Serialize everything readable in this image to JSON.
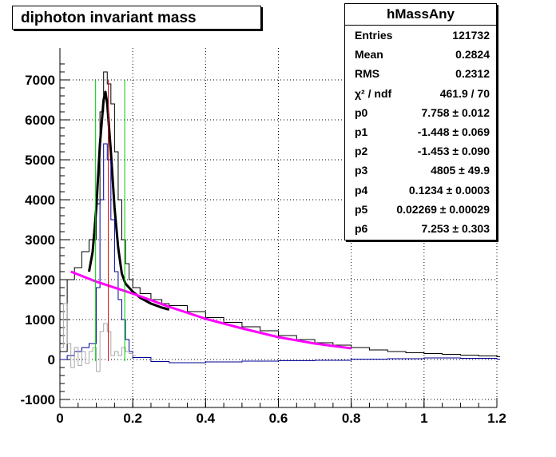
{
  "title": "diphoton invariant mass",
  "stats": {
    "name": "hMassAny",
    "rows": [
      {
        "label": "Entries",
        "value": "121732"
      },
      {
        "label": "Mean",
        "value": "0.2824"
      },
      {
        "label": "RMS",
        "value": "0.2312"
      },
      {
        "label": "χ² / ndf",
        "value": "461.9 / 70"
      },
      {
        "label": "p0",
        "value": "7.758 ± 0.012"
      },
      {
        "label": "p1",
        "value": "-1.448 ± 0.069"
      },
      {
        "label": "p2",
        "value": "-1.453 ± 0.090"
      },
      {
        "label": "p3",
        "value": "4805 ± 49.9"
      },
      {
        "label": "p4",
        "value": "0.1234 ± 0.0003"
      },
      {
        "label": "p5",
        "value": "0.02269 ± 0.00029"
      },
      {
        "label": "p6",
        "value": "7.253 ± 0.303"
      }
    ]
  },
  "chart_data": {
    "type": "line",
    "title": "diphoton invariant mass",
    "xlabel": "",
    "ylabel": "",
    "xlim": [
      0,
      1.2
    ],
    "ylim": [
      -1200,
      7800
    ],
    "grid": true,
    "x_ticks": [
      "0",
      "0.2",
      "0.4",
      "0.6",
      "0.8",
      "1",
      "1.2"
    ],
    "y_ticks": [
      "-1000",
      "0",
      "1000",
      "2000",
      "3000",
      "4000",
      "5000",
      "6000",
      "7000"
    ],
    "x_tick_values": [
      0,
      0.2,
      0.4,
      0.6,
      0.8,
      1.0,
      1.2
    ],
    "y_tick_values": [
      -1000,
      0,
      1000,
      2000,
      3000,
      4000,
      5000,
      6000,
      7000
    ],
    "series": [
      {
        "kind": "histogram",
        "color": "#000000",
        "x": [
          0.0,
          0.02,
          0.04,
          0.06,
          0.08,
          0.1,
          0.11,
          0.12,
          0.13,
          0.14,
          0.15,
          0.16,
          0.17,
          0.18,
          0.19,
          0.2,
          0.22,
          0.25,
          0.28,
          0.3,
          0.35,
          0.4,
          0.45,
          0.5,
          0.55,
          0.6,
          0.65,
          0.7,
          0.75,
          0.8,
          0.85,
          0.9,
          0.95,
          1.0,
          1.05,
          1.1,
          1.15,
          1.2
        ],
        "y": [
          200,
          2000,
          2300,
          2700,
          3000,
          3900,
          6200,
          7200,
          6900,
          6400,
          5200,
          4000,
          3000,
          2400,
          2000,
          1800,
          1650,
          1500,
          1400,
          1350,
          1200,
          1050,
          930,
          820,
          720,
          600,
          500,
          420,
          360,
          300,
          240,
          200,
          170,
          150,
          130,
          110,
          90,
          70
        ]
      },
      {
        "kind": "fit",
        "color": "#000000",
        "x": [
          0.08,
          0.09,
          0.1,
          0.11,
          0.12,
          0.125,
          0.13,
          0.14,
          0.15,
          0.16,
          0.17,
          0.18,
          0.2,
          0.22,
          0.25,
          0.28,
          0.3
        ],
        "y": [
          2200,
          2700,
          3800,
          5400,
          6500,
          6700,
          6400,
          5200,
          3800,
          2800,
          2150,
          1900,
          1700,
          1550,
          1400,
          1300,
          1250
        ]
      },
      {
        "kind": "histogram",
        "color": "#000099",
        "x": [
          0.0,
          0.02,
          0.04,
          0.06,
          0.08,
          0.1,
          0.11,
          0.12,
          0.13,
          0.14,
          0.15,
          0.16,
          0.17,
          0.18,
          0.19,
          0.2,
          0.25,
          0.3,
          0.4,
          0.5,
          0.6,
          0.7,
          0.8,
          0.9,
          1.0,
          1.1,
          1.2
        ],
        "y": [
          0,
          100,
          200,
          300,
          400,
          1800,
          4000,
          5400,
          5000,
          3500,
          2200,
          1500,
          1000,
          500,
          200,
          50,
          -50,
          -80,
          -60,
          -40,
          -30,
          -20,
          10,
          20,
          40,
          30,
          10
        ]
      },
      {
        "kind": "histogram",
        "color": "#aaaaaa",
        "x": [
          0.0,
          0.01,
          0.02,
          0.03,
          0.04,
          0.05,
          0.06,
          0.07,
          0.08,
          0.09,
          0.1,
          0.11,
          0.12,
          0.13,
          0.14,
          0.15,
          0.16,
          0.17,
          0.18,
          0.19,
          0.2
        ],
        "y": [
          300,
          1400,
          400,
          -200,
          300,
          -150,
          200,
          -100,
          200,
          300,
          -300,
          700,
          900,
          700,
          100,
          200,
          100,
          300,
          200,
          150,
          100
        ]
      },
      {
        "kind": "background",
        "color": "#ff00ff",
        "x": [
          0.03,
          0.1,
          0.2,
          0.3,
          0.4,
          0.5,
          0.6,
          0.7,
          0.8
        ],
        "y": [
          2200,
          1950,
          1650,
          1320,
          1020,
          780,
          560,
          400,
          280
        ]
      }
    ],
    "vertical_lines": [
      {
        "x": 0.098,
        "color": "#00cc00",
        "y_top": 7000
      },
      {
        "x": 0.178,
        "color": "#00cc00",
        "y_top": 7000
      },
      {
        "x": 0.133,
        "color": "#cc0000",
        "y_top": 7000
      }
    ]
  }
}
